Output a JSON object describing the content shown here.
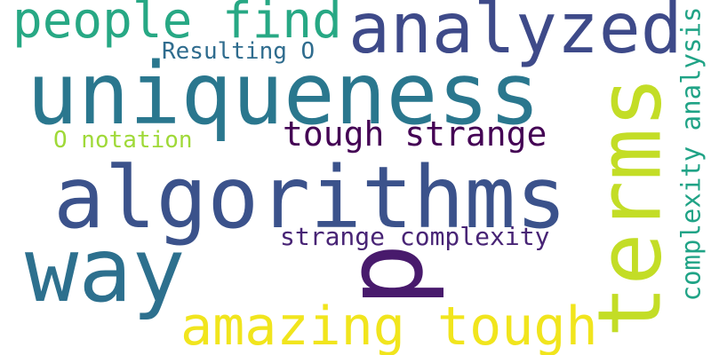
{
  "words": [
    {
      "text": "people find",
      "color": "#27a884"
    },
    {
      "text": "analyzed",
      "color": "#3e4a89"
    },
    {
      "text": "Resulting O",
      "color": "#2f6c8e"
    },
    {
      "text": "uniqueness",
      "color": "#2a778e"
    },
    {
      "text": "terms",
      "color": "#c3dd26"
    },
    {
      "text": "complexity analysis",
      "color": "#20a386"
    },
    {
      "text": "O notation",
      "color": "#9fd938"
    },
    {
      "text": "tough strange",
      "color": "#440154"
    },
    {
      "text": "algorithms",
      "color": "#3b528b"
    },
    {
      "text": "strange complexity",
      "color": "#482475"
    },
    {
      "text": "way",
      "color": "#2d708e"
    },
    {
      "text": "p",
      "color": "#481a6c"
    },
    {
      "text": "amazing tough",
      "color": "#f1e51d"
    }
  ]
}
